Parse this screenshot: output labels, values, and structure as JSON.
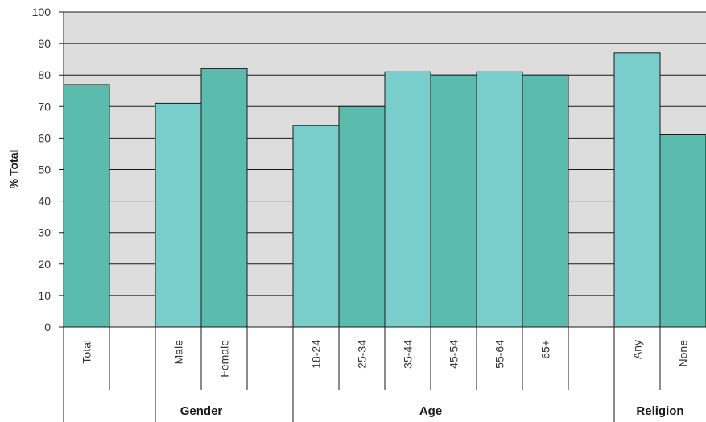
{
  "chart_data": {
    "type": "bar",
    "ylabel": "% Total",
    "ylim": [
      0,
      100
    ],
    "yticks": [
      "0",
      "10",
      "20",
      "30",
      "40",
      "50",
      "60",
      "70",
      "80",
      "90",
      "100"
    ],
    "grid": true,
    "categories": [
      "Total",
      "",
      "Male",
      "Female",
      "",
      "18-24",
      "25-34",
      "35-44",
      "45-54",
      "55-64",
      "65+",
      "",
      "Any",
      "None"
    ],
    "values": [
      77,
      null,
      71,
      82,
      null,
      64,
      70,
      81,
      80,
      81,
      80,
      null,
      87,
      61
    ],
    "groups": [
      {
        "label": "",
        "categories": [
          "Total"
        ]
      },
      {
        "label": "Gender",
        "categories": [
          "Male",
          "Female"
        ]
      },
      {
        "label": "Age",
        "categories": [
          "18-24",
          "25-34",
          "35-44",
          "45-54",
          "55-64",
          "65+"
        ]
      },
      {
        "label": "Religion",
        "categories": [
          "Any",
          "None"
        ]
      }
    ],
    "colors": {
      "dark": "#5bbcae",
      "light": "#79cdcb",
      "plot_background": "#dddddd",
      "grid": "#1a1a1a"
    }
  }
}
